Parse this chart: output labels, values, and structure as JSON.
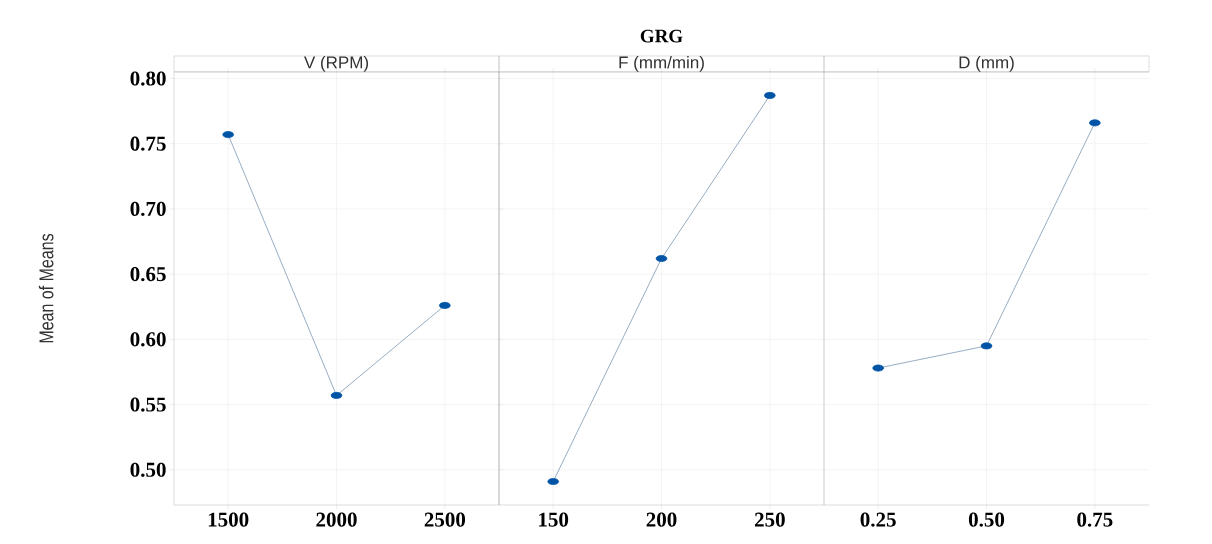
{
  "chart_data": [
    {
      "type": "line",
      "ylabel": "Mean of Means",
      "xlabel": "V (RPM)",
      "categories": [
        "1500",
        "2000",
        "2500"
      ],
      "series": [
        {
          "color": "#0054a6",
          "values": [
            0.757,
            0.557,
            0.626
          ]
        }
      ],
      "ylim": [
        0.473,
        0.805
      ],
      "yticks": [
        {
          "value": 0.5,
          "label": "0.50"
        },
        {
          "value": 0.55,
          "label": "0.55"
        },
        {
          "value": 0.6,
          "label": "0.60"
        },
        {
          "value": 0.65,
          "label": "0.65"
        },
        {
          "value": 0.7,
          "label": "0.70"
        },
        {
          "value": 0.75,
          "label": "0.75"
        },
        {
          "value": 0.8,
          "label": "0.80"
        }
      ],
      "grid": true,
      "marker": "circle"
    },
    {
      "type": "line",
      "title": "GRG",
      "xlabel": "F (mm/min)",
      "categories": [
        "150",
        "200",
        "250"
      ],
      "series": [
        {
          "color": "#0054a6",
          "values": [
            0.491,
            0.662,
            0.787
          ]
        }
      ],
      "ylim": [
        0.473,
        0.805
      ],
      "yticks": [
        0.5,
        0.55,
        0.6,
        0.65,
        0.7,
        0.75,
        0.8
      ],
      "grid": true,
      "marker": "circle",
      "tick_labels": "x"
    },
    {
      "type": "line",
      "xlabel": "D (mm)",
      "categories": [
        "0.25",
        "0.50",
        "0.75"
      ],
      "series": [
        {
          "color": "#0054a6",
          "values": [
            0.578,
            0.595,
            0.766
          ]
        }
      ],
      "ylim": [
        0.473,
        0.805
      ],
      "yticks": [
        0.5,
        0.55,
        0.6,
        0.65,
        0.7,
        0.75,
        0.8
      ],
      "grid": true,
      "marker": "circle",
      "tick_labels": "x"
    }
  ]
}
